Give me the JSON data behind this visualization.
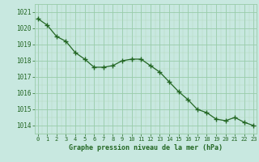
{
  "x": [
    0,
    1,
    2,
    3,
    4,
    5,
    6,
    7,
    8,
    9,
    10,
    11,
    12,
    13,
    14,
    15,
    16,
    17,
    18,
    19,
    20,
    21,
    22,
    23
  ],
  "y": [
    1020.6,
    1020.2,
    1019.5,
    1019.2,
    1018.5,
    1018.1,
    1017.6,
    1017.6,
    1017.7,
    1018.0,
    1018.1,
    1018.1,
    1017.7,
    1017.3,
    1016.7,
    1016.1,
    1015.6,
    1015.0,
    1014.8,
    1014.4,
    1014.3,
    1014.5,
    1014.2,
    1014.0
  ],
  "bg_color": "#c8e8e0",
  "grid_color_major": "#99ccaa",
  "grid_color_minor": "#b3d9bb",
  "line_color": "#226622",
  "marker_color": "#226622",
  "xlabel": "Graphe pression niveau de la mer (hPa)",
  "xlabel_color": "#226622",
  "tick_color": "#226622",
  "axis_label_color": "#226622",
  "ylim": [
    1013.5,
    1021.5
  ],
  "xlim": [
    -0.3,
    23.3
  ],
  "yticks": [
    1014,
    1015,
    1016,
    1017,
    1018,
    1019,
    1020,
    1021
  ],
  "xticks": [
    0,
    1,
    2,
    3,
    4,
    5,
    6,
    7,
    8,
    9,
    10,
    11,
    12,
    13,
    14,
    15,
    16,
    17,
    18,
    19,
    20,
    21,
    22,
    23
  ],
  "xtick_labels": [
    "0",
    "1",
    "2",
    "3",
    "4",
    "5",
    "6",
    "7",
    "8",
    "9",
    "10",
    "11",
    "12",
    "13",
    "14",
    "15",
    "16",
    "17",
    "18",
    "19",
    "20",
    "21",
    "22",
    "23"
  ],
  "ytick_labels": [
    "1014",
    "1015",
    "1016",
    "1017",
    "1018",
    "1019",
    "1020",
    "1021"
  ]
}
